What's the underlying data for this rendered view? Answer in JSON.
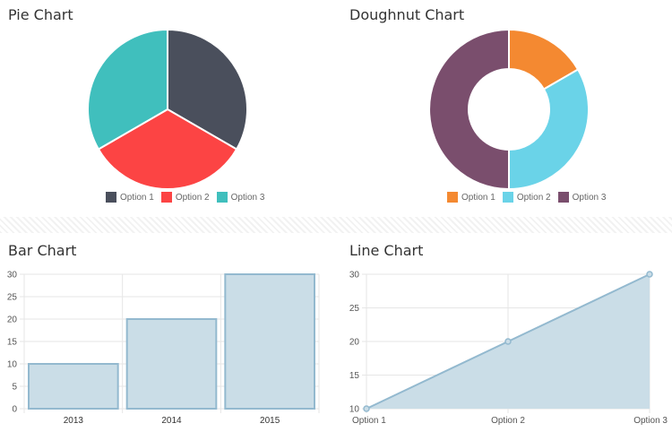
{
  "titles": {
    "pie": "Pie Chart",
    "doughnut": "Doughnut Chart",
    "bar": "Bar Chart",
    "line": "Line Chart"
  },
  "chart_data": [
    {
      "type": "pie",
      "title": "Pie Chart",
      "categories": [
        "Option 1",
        "Option 2",
        "Option 3"
      ],
      "values": [
        1,
        1,
        1
      ],
      "colors": [
        "#4a4f5c",
        "#fc4444",
        "#40bfbd"
      ],
      "legend_position": "bottom"
    },
    {
      "type": "pie",
      "subtype": "doughnut",
      "title": "Doughnut Chart",
      "categories": [
        "Option 1",
        "Option 2",
        "Option 3"
      ],
      "values": [
        1,
        2,
        3
      ],
      "colors": [
        "#f48931",
        "#6ad3e8",
        "#7a4e6d"
      ],
      "legend_position": "bottom"
    },
    {
      "type": "bar",
      "title": "Bar Chart",
      "categories": [
        "2013",
        "2014",
        "2015"
      ],
      "values": [
        10,
        20,
        30
      ],
      "ylim": [
        0,
        30
      ],
      "yticks": [
        0,
        5,
        10,
        15,
        20,
        25,
        30
      ],
      "grid": true,
      "fill": "#cadde7",
      "stroke": "#93b9cf"
    },
    {
      "type": "area",
      "title": "Line Chart",
      "categories": [
        "Option 1",
        "Option 2",
        "Option 3"
      ],
      "values": [
        10,
        20,
        30
      ],
      "ylim": [
        10,
        30
      ],
      "yticks": [
        10,
        15,
        20,
        25,
        30
      ],
      "grid": true,
      "fill": "#cadde7",
      "stroke": "#93b9cf"
    }
  ]
}
